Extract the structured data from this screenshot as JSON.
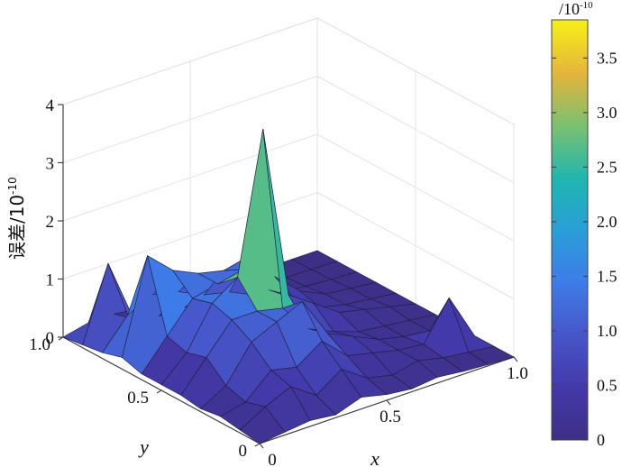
{
  "chart_data": {
    "type": "surface",
    "title": "",
    "zlabel": "误差/10",
    "zlabel_exp": "-10",
    "xlabel": "x",
    "ylabel": "y",
    "xlim": [
      0,
      1
    ],
    "ylim": [
      0,
      1
    ],
    "zlim": [
      0,
      4
    ],
    "x_ticks": [
      "0",
      "0.5",
      "1.0"
    ],
    "y_ticks": [
      "0",
      "0.5",
      "1.0"
    ],
    "z_ticks": [
      "0",
      "1",
      "2",
      "3",
      "4"
    ],
    "colormap": "parula",
    "colorbar": {
      "unit": "/10",
      "unit_exp": "-10",
      "range": [
        0,
        3.85
      ],
      "ticks": [
        "0",
        "0.5",
        "1.0",
        "1.5",
        "2.0",
        "2.5",
        "3.0",
        "3.5"
      ]
    },
    "grid": true,
    "x": [
      0,
      0.1,
      0.2,
      0.3,
      0.4,
      0.5,
      0.6,
      0.7,
      0.8,
      0.9,
      1.0
    ],
    "y": [
      0,
      0.1,
      0.2,
      0.3,
      0.4,
      0.5,
      0.6,
      0.7,
      0.8,
      0.9,
      1.0
    ],
    "z": [
      [
        0.0,
        0.05,
        0.1,
        0.05,
        0.2,
        0.1,
        0.05,
        0.1,
        0.05,
        0.02,
        0.0
      ],
      [
        0.05,
        0.3,
        0.5,
        0.2,
        0.5,
        0.2,
        0.1,
        0.2,
        0.1,
        0.05,
        0.0
      ],
      [
        0.1,
        0.2,
        0.6,
        0.5,
        0.8,
        0.4,
        0.3,
        0.2,
        0.15,
        0.8,
        0.0
      ],
      [
        0.05,
        0.3,
        0.9,
        1.1,
        1.3,
        0.6,
        0.4,
        0.2,
        0.1,
        0.05,
        0.0
      ],
      [
        0.1,
        0.6,
        1.1,
        1.1,
        1.0,
        0.5,
        0.3,
        0.15,
        0.1,
        0.05,
        0.0
      ],
      [
        0.1,
        0.5,
        1.2,
        1.5,
        3.9,
        0.9,
        0.6,
        0.3,
        0.2,
        0.1,
        0.0
      ],
      [
        0.1,
        0.6,
        1.1,
        1.2,
        1.3,
        0.8,
        0.5,
        0.2,
        0.1,
        0.05,
        0.0
      ],
      [
        0.2,
        1.8,
        1.4,
        1.2,
        1.1,
        1.2,
        0.7,
        0.3,
        0.1,
        0.05,
        0.0
      ],
      [
        0.1,
        0.6,
        0.8,
        0.7,
        0.5,
        0.4,
        0.2,
        0.1,
        0.05,
        0.02,
        0.0
      ],
      [
        0.05,
        1.3,
        0.2,
        0.1,
        0.1,
        0.1,
        0.1,
        0.05,
        0.02,
        0.01,
        0.0
      ],
      [
        0.0,
        0.1,
        0.1,
        0.05,
        0.05,
        0.0,
        0.0,
        0.0,
        0.0,
        0.0,
        0.0
      ]
    ]
  }
}
